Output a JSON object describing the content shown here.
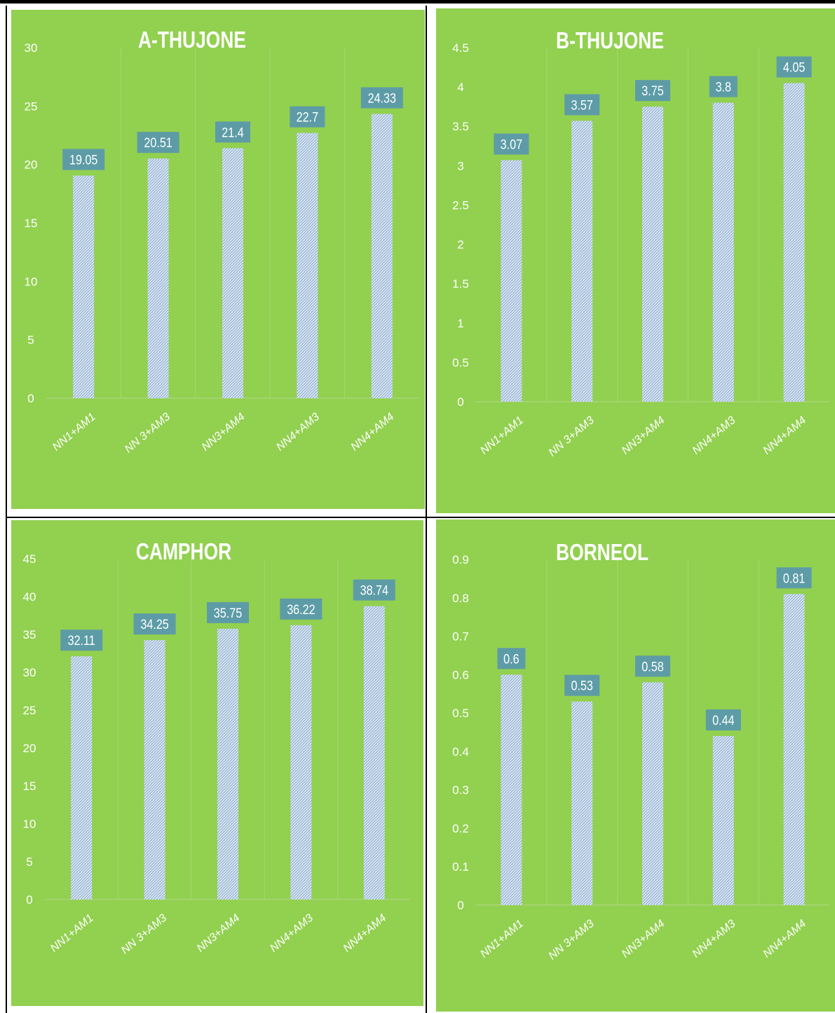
{
  "colors": {
    "panel_background": "#92d050",
    "bar_fill": "#dbe8f5",
    "bar_hatch": "#8aa9c9",
    "label_box": "#5d9ca6",
    "label_text": "#ffffff",
    "axis_text": "#ffffff",
    "gridline": "#a6d86a"
  },
  "chart_data": [
    {
      "type": "bar",
      "title": "A-THUJONE",
      "categories": [
        "NN1+AM1",
        "NN 3+AM3",
        "NN3+AM4",
        "NN4+AM3",
        "NN4+AM4"
      ],
      "values": [
        19.05,
        20.51,
        21.4,
        22.7,
        24.33
      ],
      "value_labels": [
        "19.05",
        "20.51",
        "21.4",
        "22.7",
        "24.33"
      ],
      "ylim": [
        0,
        30
      ],
      "yticks": [
        "0",
        "5",
        "10",
        "15",
        "20",
        "25",
        "30"
      ],
      "xlabel": "",
      "ylabel": "",
      "grid": "vertical category separators"
    },
    {
      "type": "bar",
      "title": "B-THUJONE",
      "categories": [
        "NN1+AM1",
        "NN 3+AM3",
        "NN3+AM4",
        "NN4+AM3",
        "NN4+AM4"
      ],
      "values": [
        3.07,
        3.57,
        3.75,
        3.8,
        4.05
      ],
      "value_labels": [
        "3.07",
        "3.57",
        "3.75",
        "3.8",
        "4.05"
      ],
      "ylim": [
        0,
        4.5
      ],
      "yticks": [
        "0",
        "0.5",
        "1",
        "1.5",
        "2",
        "2.5",
        "3",
        "3.5",
        "4",
        "4.5"
      ],
      "xlabel": "",
      "ylabel": "",
      "grid": "vertical category separators"
    },
    {
      "type": "bar",
      "title": "CAMPHOR",
      "categories": [
        "NN1+AM1",
        "NN 3+AM3",
        "NN3+AM4",
        "NN4+AM3",
        "NN4+AM4"
      ],
      "values": [
        32.11,
        34.25,
        35.75,
        36.22,
        38.74
      ],
      "value_labels": [
        "32.11",
        "34.25",
        "35.75",
        "36.22",
        "38.74"
      ],
      "ylim": [
        0,
        45
      ],
      "yticks": [
        "0",
        "5",
        "10",
        "15",
        "20",
        "25",
        "30",
        "35",
        "40",
        "45"
      ],
      "xlabel": "",
      "ylabel": "",
      "grid": "vertical category separators"
    },
    {
      "type": "bar",
      "title": "BORNEOL",
      "categories": [
        "NN1+AM1",
        "NN 3+AM3",
        "NN3+AM4",
        "NN4+AM3",
        "NN4+AM4"
      ],
      "values": [
        0.6,
        0.53,
        0.58,
        0.44,
        0.81
      ],
      "value_labels": [
        "0.6",
        "0.53",
        "0.58",
        "0.44",
        "0.81"
      ],
      "ylim": [
        0,
        0.9
      ],
      "yticks": [
        "0",
        "0.1",
        "0.2",
        "0.3",
        "0.4",
        "0.5",
        "0.6",
        "0.7",
        "0.8",
        "0.9"
      ],
      "xlabel": "",
      "ylabel": "",
      "grid": "vertical category separators"
    }
  ]
}
